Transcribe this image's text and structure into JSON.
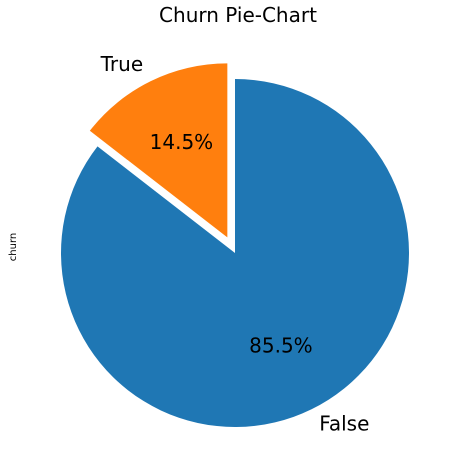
{
  "chart_data": {
    "type": "pie",
    "title": "Churn Pie-Chart",
    "ylabel": "churn",
    "slices": [
      {
        "label": "False",
        "value": 85.5,
        "pct_label": "85.5%",
        "color": "#1f77b4",
        "explode": false
      },
      {
        "label": "True",
        "value": 14.5,
        "pct_label": "14.5%",
        "color": "#ff7f0e",
        "explode": true
      }
    ]
  }
}
